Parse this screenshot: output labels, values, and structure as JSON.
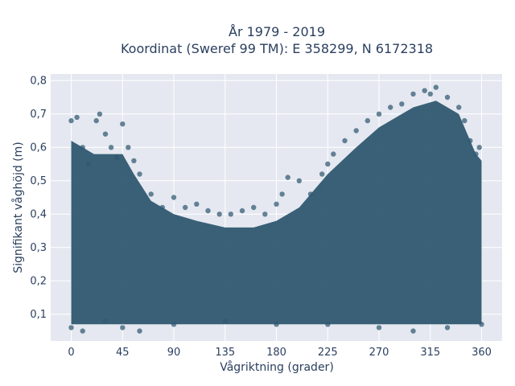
{
  "chart_data": {
    "type": "scatter",
    "title_lines": [
      "År 1979 - 2019",
      "Koordinat (Sweref 99 TM): E 358299, N 6172318"
    ],
    "xlabel": "Vågriktning (grader)",
    "ylabel": "Signifikant våghöjd (m)",
    "xlim": [
      -18,
      378
    ],
    "ylim": [
      0.02,
      0.82
    ],
    "xticks": [
      0,
      45,
      90,
      135,
      180,
      225,
      270,
      315,
      360
    ],
    "yticks": [
      0.1,
      0.2,
      0.3,
      0.4,
      0.5,
      0.6,
      0.7,
      0.8
    ],
    "ytick_labels": [
      "0,1",
      "0,2",
      "0,3",
      "0,4",
      "0,5",
      "0,6",
      "0,7",
      "0,8"
    ],
    "grid": true,
    "legend": "none",
    "marker_color": "#2f5870",
    "marker_opacity": 0.72,
    "plot_background": "#e5e8f0",
    "points_note_removed": true,
    "series": [
      {
        "values": [
          [
            0,
            0.68
          ],
          [
            5,
            0.69
          ],
          [
            10,
            0.6
          ],
          [
            15,
            0.55
          ],
          [
            22,
            0.68
          ],
          [
            25,
            0.7
          ],
          [
            30,
            0.64
          ],
          [
            35,
            0.6
          ],
          [
            40,
            0.57
          ],
          [
            45,
            0.67
          ],
          [
            50,
            0.6
          ],
          [
            55,
            0.56
          ],
          [
            60,
            0.52
          ],
          [
            70,
            0.46
          ],
          [
            80,
            0.42
          ],
          [
            90,
            0.45
          ],
          [
            100,
            0.42
          ],
          [
            110,
            0.43
          ],
          [
            120,
            0.41
          ],
          [
            130,
            0.4
          ],
          [
            140,
            0.4
          ],
          [
            150,
            0.41
          ],
          [
            160,
            0.42
          ],
          [
            170,
            0.4
          ],
          [
            180,
            0.43
          ],
          [
            185,
            0.46
          ],
          [
            190,
            0.51
          ],
          [
            200,
            0.5
          ],
          [
            210,
            0.46
          ],
          [
            220,
            0.52
          ],
          [
            225,
            0.55
          ],
          [
            230,
            0.58
          ],
          [
            240,
            0.62
          ],
          [
            250,
            0.65
          ],
          [
            260,
            0.68
          ],
          [
            270,
            0.7
          ],
          [
            280,
            0.72
          ],
          [
            290,
            0.73
          ],
          [
            300,
            0.76
          ],
          [
            310,
            0.77
          ],
          [
            315,
            0.76
          ],
          [
            320,
            0.78
          ],
          [
            330,
            0.75
          ],
          [
            340,
            0.72
          ],
          [
            345,
            0.68
          ],
          [
            350,
            0.62
          ],
          [
            355,
            0.58
          ],
          [
            358,
            0.6
          ],
          [
            0,
            0.06
          ],
          [
            10,
            0.05
          ],
          [
            30,
            0.08
          ],
          [
            45,
            0.06
          ],
          [
            60,
            0.05
          ],
          [
            90,
            0.07
          ],
          [
            135,
            0.08
          ],
          [
            180,
            0.07
          ],
          [
            225,
            0.07
          ],
          [
            270,
            0.06
          ],
          [
            300,
            0.05
          ],
          [
            330,
            0.06
          ],
          [
            360,
            0.07
          ]
        ]
      }
    ]
  }
}
